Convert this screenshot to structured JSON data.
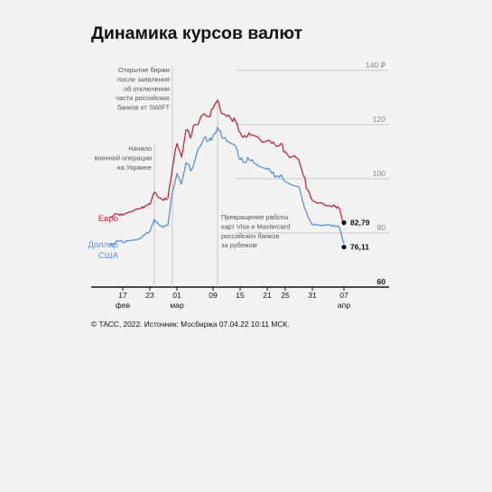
{
  "title": "Динамика курсов валют",
  "source": "© ТАСС, 2022. Источник: Мосбиржа 07.04.22 10:11 МСК.",
  "colors": {
    "euro": "#c0283c",
    "usd": "#5b8fd6",
    "grid": "#c9c9c9",
    "background": "#f3f3f3"
  },
  "chart_data": {
    "type": "line",
    "title": "Динамика курсов валют",
    "ylim": [
      60,
      140
    ],
    "yticks": [
      "60",
      "80",
      "100",
      "120",
      "140 ₽"
    ],
    "x_range": [
      "2022-02-10",
      "2022-04-17"
    ],
    "xticks": [
      {
        "date": "2022-02-17",
        "label": "17",
        "sub": "фев"
      },
      {
        "date": "2022-02-23",
        "label": "23",
        "sub": ""
      },
      {
        "date": "2022-03-01",
        "label": "01",
        "sub": "мар"
      },
      {
        "date": "2022-03-09",
        "label": "09",
        "sub": ""
      },
      {
        "date": "2022-03-15",
        "label": "15",
        "sub": ""
      },
      {
        "date": "2022-03-21",
        "label": "21",
        "sub": ""
      },
      {
        "date": "2022-03-25",
        "label": "25",
        "sub": ""
      },
      {
        "date": "2022-03-31",
        "label": "31",
        "sub": ""
      },
      {
        "date": "2022-04-07",
        "label": "07",
        "sub": "апр"
      }
    ],
    "series": [
      {
        "name": "Евро",
        "color": "#c0283c",
        "x": [
          "2022-02-14",
          "2022-02-15",
          "2022-02-16",
          "2022-02-17",
          "2022-02-18",
          "2022-02-21",
          "2022-02-22",
          "2022-02-23",
          "2022-02-24",
          "2022-02-25",
          "2022-02-26",
          "2022-02-27",
          "2022-02-28",
          "2022-03-01",
          "2022-03-02",
          "2022-03-03",
          "2022-03-04",
          "2022-03-05",
          "2022-03-07",
          "2022-03-08",
          "2022-03-09",
          "2022-03-10",
          "2022-03-11",
          "2022-03-12",
          "2022-03-13",
          "2022-03-14",
          "2022-03-15",
          "2022-03-16",
          "2022-03-17",
          "2022-03-18",
          "2022-03-21",
          "2022-03-22",
          "2022-03-23",
          "2022-03-24",
          "2022-03-25",
          "2022-03-28",
          "2022-03-29",
          "2022-03-30",
          "2022-03-31",
          "2022-04-01",
          "2022-04-04",
          "2022-04-05",
          "2022-04-06",
          "2022-04-07"
        ],
        "values": [
          86,
          86.5,
          87,
          86.5,
          87.5,
          89,
          90,
          90.5,
          95,
          93,
          92,
          93,
          104,
          113,
          108,
          118,
          115,
          120,
          124,
          123,
          126,
          129,
          124,
          123,
          122,
          121,
          117,
          116,
          117,
          116,
          114,
          113,
          112,
          113,
          110,
          107,
          101,
          96,
          92,
          91,
          90,
          90,
          89,
          82.79
        ]
      },
      {
        "name": "Доллар США",
        "color": "#5b8fd6",
        "x": [
          "2022-02-14",
          "2022-02-15",
          "2022-02-16",
          "2022-02-17",
          "2022-02-18",
          "2022-02-21",
          "2022-02-22",
          "2022-02-23",
          "2022-02-24",
          "2022-02-25",
          "2022-02-26",
          "2022-02-27",
          "2022-02-28",
          "2022-03-01",
          "2022-03-02",
          "2022-03-03",
          "2022-03-04",
          "2022-03-05",
          "2022-03-07",
          "2022-03-08",
          "2022-03-09",
          "2022-03-10",
          "2022-03-11",
          "2022-03-12",
          "2022-03-13",
          "2022-03-14",
          "2022-03-15",
          "2022-03-16",
          "2022-03-17",
          "2022-03-18",
          "2022-03-21",
          "2022-03-22",
          "2022-03-23",
          "2022-03-24",
          "2022-03-25",
          "2022-03-28",
          "2022-03-29",
          "2022-03-30",
          "2022-03-31",
          "2022-04-01",
          "2022-04-04",
          "2022-04-05",
          "2022-04-06",
          "2022-04-07"
        ],
        "values": [
          75.5,
          76,
          77,
          76.5,
          77,
          78,
          79.5,
          80.5,
          85,
          83,
          82,
          83,
          95,
          102,
          98,
          106,
          103,
          107,
          115,
          114,
          116,
          119,
          115,
          114,
          113,
          112,
          107,
          106,
          107,
          106,
          103.5,
          102,
          101,
          101.5,
          99,
          97,
          91,
          86,
          83,
          83,
          83,
          82.5,
          82,
          76.11
        ]
      }
    ],
    "end_labels": {
      "euro": "82,79",
      "usd": "76,11"
    },
    "series_labels": {
      "euro": "Евро",
      "usd_line1": "Доллар",
      "usd_line2": "США"
    },
    "annotations": [
      {
        "date": "2022-02-24",
        "lines": [
          "Начало",
          "военной операции",
          "на Украине"
        ]
      },
      {
        "date": "2022-02-28",
        "lines": [
          "Открытие биржи",
          "после заявления",
          "об отключении",
          "части российских",
          "банков от SWIFT"
        ]
      },
      {
        "date": "2022-03-10",
        "lines": [
          "Прекращение работы",
          "карт Visa и Mastercard",
          "российских банков",
          "за рубежом"
        ]
      }
    ]
  }
}
